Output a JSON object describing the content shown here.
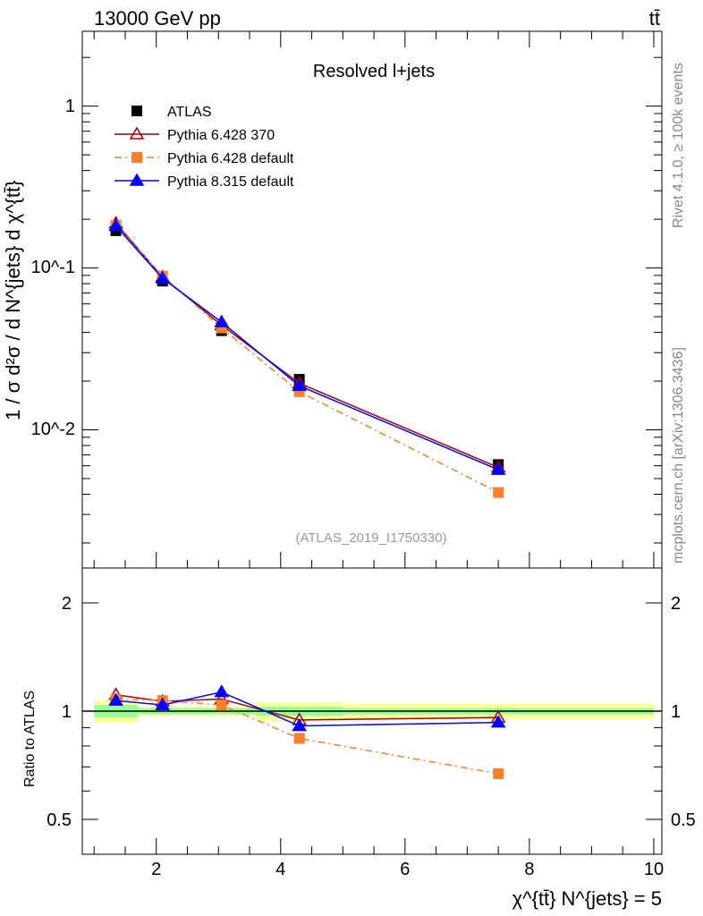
{
  "header": {
    "energy": "13000 GeV pp",
    "process": "tt̄"
  },
  "side": {
    "rivet": "Rivet 4.1.0, ≥ 100k events",
    "mcplots": "mcplots.cern.ch [arXiv:1306.3436]"
  },
  "chart_data": [
    {
      "type": "line",
      "title": "Resolved l+jets",
      "watermark": "(ATLAS_2019_I1750330)",
      "ylabel": "1 / σ d²σ / d N^{jets} d χ^{tt̄}",
      "yscale": "log",
      "ylim": [
        0.0014,
        2.9
      ],
      "xlim": [
        0.81,
        10.13
      ],
      "ytick_labels": [
        "1",
        "10^-1",
        "10^-2"
      ],
      "x": [
        1.35,
        2.1,
        3.05,
        4.3,
        7.5
      ],
      "series": [
        {
          "name": "ATLAS",
          "marker": "square",
          "color": "#000000",
          "values": [
            0.17,
            0.083,
            0.041,
            0.0205,
            0.0061
          ]
        },
        {
          "name": "Pythia 6.428 370",
          "marker": "open-triangle",
          "color": "#a00014",
          "values": [
            0.189,
            0.088,
            0.0443,
            0.0194,
            0.00586
          ]
        },
        {
          "name": "Pythia 6.428 default",
          "marker": "square",
          "color": "#ff7f2a",
          "style": "dashdot",
          "values": [
            0.184,
            0.089,
            0.0426,
            0.0172,
            0.0041
          ]
        },
        {
          "name": "Pythia 8.315 default",
          "marker": "triangle",
          "color": "#0000ff",
          "values": [
            0.182,
            0.0863,
            0.0463,
            0.0187,
            0.00567
          ]
        }
      ],
      "legend": "top-left"
    },
    {
      "type": "line",
      "ylabel": "Ratio to ATLAS",
      "yscale": "log",
      "ylim": [
        0.4,
        2.5
      ],
      "xlim": [
        0.81,
        10.13
      ],
      "xlabel": "χ^{tt̄} N^{jets} = 5",
      "xticks": [
        "2",
        "4",
        "6",
        "8",
        "10"
      ],
      "ytick_labels": [
        "0.5",
        "1",
        "2"
      ],
      "bin_edges": [
        1.0,
        1.7,
        2.5,
        3.6,
        5.0,
        10.0
      ],
      "band_total": [
        0.07,
        0.03,
        0.03,
        0.06,
        0.05
      ],
      "band_stat": [
        0.04,
        0.02,
        0.02,
        0.03,
        0.02
      ],
      "x": [
        1.35,
        2.1,
        3.05,
        4.3,
        7.5
      ],
      "series": [
        {
          "name": "Pythia 6.428 370",
          "values": [
            1.11,
            1.065,
            1.08,
            0.945,
            0.96
          ]
        },
        {
          "name": "Pythia 6.428 default",
          "values": [
            1.08,
            1.07,
            1.04,
            0.84,
            0.67
          ]
        },
        {
          "name": "Pythia 8.315 default",
          "values": [
            1.07,
            1.04,
            1.13,
            0.91,
            0.93
          ]
        }
      ]
    }
  ]
}
